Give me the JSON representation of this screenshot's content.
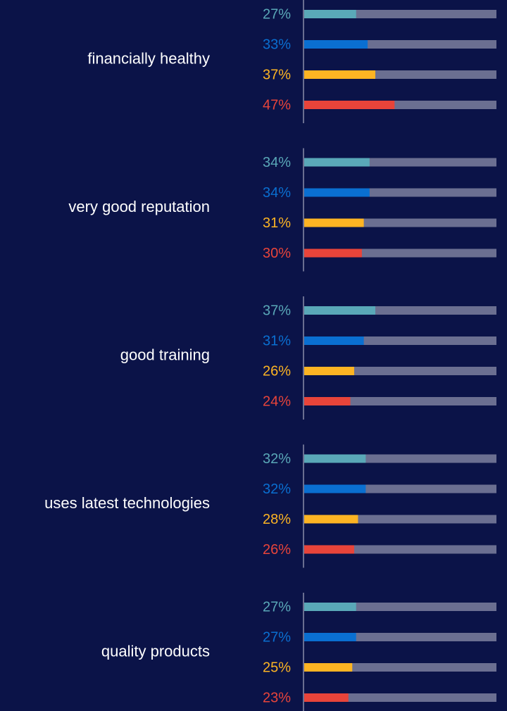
{
  "chart_data": {
    "type": "bar",
    "orientation": "horizontal",
    "categories": [
      "financially healthy",
      "very good reputation",
      "good training",
      "uses latest technologies",
      "quality products"
    ],
    "xlim": [
      0,
      100
    ],
    "track_color": "#6b6f91",
    "series": [
      {
        "color": "#5aa8b8",
        "values": [
          27,
          34,
          37,
          32,
          27
        ],
        "value_labels": [
          "27%",
          "34%",
          "37%",
          "32%",
          "27%"
        ]
      },
      {
        "color": "#0a6fd1",
        "values": [
          33,
          34,
          31,
          32,
          27
        ],
        "value_labels": [
          "33%",
          "34%",
          "31%",
          "32%",
          "27%"
        ]
      },
      {
        "color": "#fdb423",
        "values": [
          37,
          31,
          26,
          28,
          25
        ],
        "value_labels": [
          "37%",
          "31%",
          "26%",
          "28%",
          "25%"
        ]
      },
      {
        "color": "#e8443a",
        "values": [
          47,
          30,
          24,
          26,
          23
        ],
        "value_labels": [
          "47%",
          "30%",
          "24%",
          "26%",
          "23%"
        ]
      }
    ]
  }
}
